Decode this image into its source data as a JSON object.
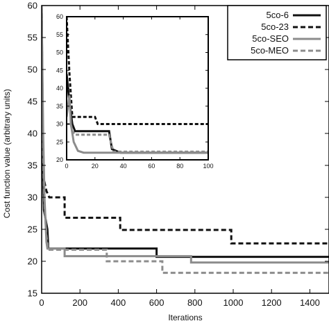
{
  "chart_data": [
    {
      "type": "line",
      "xlabel": "Iterations",
      "ylabel": "Cost function value (arbitrary units)",
      "xlim": [
        0,
        1500
      ],
      "ylim": [
        15,
        60
      ],
      "x_ticks": [
        0,
        200,
        400,
        600,
        800,
        1000,
        1200,
        1400
      ],
      "y_ticks": [
        15,
        20,
        25,
        30,
        35,
        40,
        45,
        50,
        55,
        60
      ],
      "grid": false,
      "legend_position": "top-right",
      "series": [
        {
          "name": "5co-6",
          "color": "#111111",
          "dash": "solid",
          "x": [
            0,
            8,
            12,
            18,
            24,
            30,
            35,
            600,
            600,
            1500
          ],
          "y": [
            60,
            33,
            28,
            27,
            26,
            25,
            22,
            22,
            20.7,
            20.7
          ]
        },
        {
          "name": "5co-23",
          "color": "#111111",
          "dash": "dashed",
          "x": [
            0,
            5,
            10,
            25,
            40,
            120,
            120,
            410,
            410,
            990,
            990,
            1500
          ],
          "y": [
            60,
            38,
            33,
            31,
            30,
            30,
            26.8,
            26.8,
            24.9,
            24.9,
            22.8,
            22.8
          ]
        },
        {
          "name": "5co-SEO",
          "color": "#8c8c8c",
          "dash": "solid",
          "x": [
            0,
            8,
            15,
            25,
            30,
            120,
            120,
            780,
            780,
            1500
          ],
          "y": [
            60,
            40,
            30,
            23,
            22,
            22,
            20.8,
            20.8,
            19.8,
            19.8
          ]
        },
        {
          "name": "5co-MEO",
          "color": "#8c8c8c",
          "dash": "dashed",
          "x": [
            0,
            8,
            15,
            25,
            35,
            340,
            340,
            630,
            630,
            1500
          ],
          "y": [
            60,
            36,
            29,
            24,
            21.8,
            21.8,
            20,
            20,
            18.2,
            18.2
          ]
        }
      ]
    },
    {
      "type": "line",
      "xlabel": "",
      "ylabel": "",
      "xlim": [
        0,
        100
      ],
      "ylim": [
        20,
        60
      ],
      "x_ticks": [
        0,
        20,
        40,
        60,
        80,
        100
      ],
      "y_ticks": [
        20,
        25,
        30,
        35,
        40,
        45,
        50,
        55,
        60
      ],
      "grid": false,
      "series": [
        {
          "name": "5co-6",
          "color": "#111111",
          "dash": "solid",
          "x": [
            0,
            2,
            4,
            6,
            30,
            32,
            38,
            100
          ],
          "y": [
            44,
            36,
            30,
            28,
            28,
            23,
            22,
            22
          ]
        },
        {
          "name": "5co-23",
          "color": "#111111",
          "dash": "dashed",
          "x": [
            0,
            1,
            2,
            4,
            20,
            22,
            100
          ],
          "y": [
            60,
            52,
            44,
            32,
            32,
            30,
            30
          ]
        },
        {
          "name": "5co-SEO",
          "color": "#8c8c8c",
          "dash": "solid",
          "x": [
            0,
            2,
            3,
            5,
            8,
            12,
            100
          ],
          "y": [
            32,
            38,
            30,
            25,
            22.5,
            22,
            22
          ]
        },
        {
          "name": "5co-MEO",
          "color": "#8c8c8c",
          "dash": "dashed",
          "x": [
            0,
            3,
            4,
            6,
            30,
            33,
            100
          ],
          "y": [
            30,
            30,
            28,
            27,
            27,
            22.3,
            22.3
          ]
        }
      ]
    }
  ]
}
